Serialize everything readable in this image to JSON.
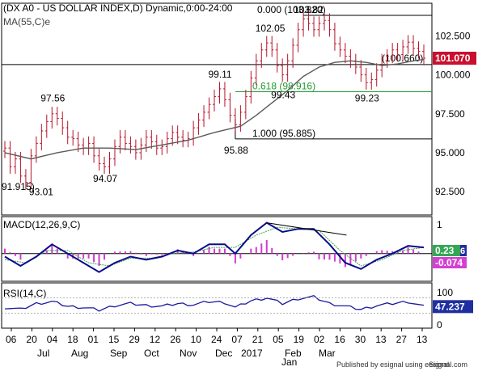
{
  "colors": {
    "candle": "#b8122a",
    "ma": "#5a5a5a",
    "fib_line": "#000000",
    "fib_618": "#1f9a2f",
    "macd": "#0a0a8c",
    "signal": "#3aa84a",
    "histogram": "#d23bd2",
    "rsi": "#1a1aa0",
    "price_badge": "#c8102e",
    "macd_badge": "#32a852",
    "macd_badge2": "#d43fd4",
    "rsi_badge": "#1f2fa0"
  },
  "chart_data": [
    {
      "type": "candlestick",
      "title": "(DX A0 - US DOLLAR INDEX,D) Dynamic,0:00-24:00",
      "overlay_label": "MA(55,C)e",
      "ylim": [
        91.0,
        104.6
      ],
      "y_ticks": [
        "102.500",
        "100.000",
        "97.500",
        "95.000",
        "92.500"
      ],
      "y_tick_values": [
        102.5,
        100.0,
        97.5,
        95.0,
        92.5
      ],
      "x_ticks": [
        "06",
        "20",
        "04",
        "18",
        "01",
        "15",
        "29",
        "12",
        "26",
        "10",
        "24",
        "07",
        "21",
        "05",
        "19",
        "02",
        "16",
        "30",
        "13",
        "27",
        "13"
      ],
      "x_month_labels": [
        "Jul",
        "Aug",
        "Sep",
        "Oct",
        "Nov",
        "Dec",
        "2017",
        "Jan",
        "Feb",
        "Mar"
      ],
      "close_path": [
        [
          0,
          95.3
        ],
        [
          1,
          94.1
        ],
        [
          2,
          94.6
        ],
        [
          3,
          93.5
        ],
        [
          4,
          93.1
        ],
        [
          5,
          94.8
        ],
        [
          6,
          95.6
        ],
        [
          7,
          96.4
        ],
        [
          8,
          97.0
        ],
        [
          9,
          97.5
        ],
        [
          10,
          97.2
        ],
        [
          11,
          96.6
        ],
        [
          12,
          96.0
        ],
        [
          13,
          95.9
        ],
        [
          14,
          95.5
        ],
        [
          15,
          95.3
        ],
        [
          16,
          95.6
        ],
        [
          17,
          94.8
        ],
        [
          18,
          94.3
        ],
        [
          19,
          94.1
        ],
        [
          20,
          94.6
        ],
        [
          21,
          95.4
        ],
        [
          22,
          96.0
        ],
        [
          23,
          95.6
        ],
        [
          24,
          95.4
        ],
        [
          25,
          95.0
        ],
        [
          26,
          95.5
        ],
        [
          27,
          96.0
        ],
        [
          28,
          95.7
        ],
        [
          29,
          95.3
        ],
        [
          30,
          95.4
        ],
        [
          31,
          95.9
        ],
        [
          32,
          96.3
        ],
        [
          33,
          96.0
        ],
        [
          34,
          95.8
        ],
        [
          35,
          95.9
        ],
        [
          36,
          96.6
        ],
        [
          37,
          97.1
        ],
        [
          38,
          97.6
        ],
        [
          39,
          98.1
        ],
        [
          40,
          98.6
        ],
        [
          41,
          99.1
        ],
        [
          42,
          98.4
        ],
        [
          43,
          97.4
        ],
        [
          44,
          96.8
        ],
        [
          45,
          97.6
        ],
        [
          46,
          98.6
        ],
        [
          47,
          99.8
        ],
        [
          48,
          100.9
        ],
        [
          49,
          101.6
        ],
        [
          50,
          102.05
        ],
        [
          51,
          101.6
        ],
        [
          52,
          100.6
        ],
        [
          53,
          100.0
        ],
        [
          54,
          100.9
        ],
        [
          55,
          101.9
        ],
        [
          56,
          102.9
        ],
        [
          57,
          103.6
        ],
        [
          58,
          103.3
        ],
        [
          59,
          102.9
        ],
        [
          60,
          103.3
        ],
        [
          61,
          103.5
        ],
        [
          62,
          102.9
        ],
        [
          63,
          102.0
        ],
        [
          64,
          101.6
        ],
        [
          65,
          101.2
        ],
        [
          66,
          100.9
        ],
        [
          67,
          100.5
        ],
        [
          68,
          100.0
        ],
        [
          69,
          99.5
        ],
        [
          70,
          99.7
        ],
        [
          71,
          100.3
        ],
        [
          72,
          100.9
        ],
        [
          73,
          101.2
        ],
        [
          74,
          101.6
        ],
        [
          75,
          101.3
        ],
        [
          76,
          101.8
        ],
        [
          77,
          102.1
        ],
        [
          78,
          101.7
        ],
        [
          79,
          101.5
        ],
        [
          80,
          101.07
        ]
      ],
      "ma_path": [
        [
          0,
          95.0
        ],
        [
          5,
          94.6
        ],
        [
          10,
          95.0
        ],
        [
          15,
          95.3
        ],
        [
          20,
          95.3
        ],
        [
          25,
          95.2
        ],
        [
          30,
          95.5
        ],
        [
          35,
          95.8
        ],
        [
          40,
          96.3
        ],
        [
          45,
          96.7
        ],
        [
          48,
          97.4
        ],
        [
          51,
          98.2
        ],
        [
          54,
          99.0
        ],
        [
          57,
          99.9
        ],
        [
          60,
          100.5
        ],
        [
          63,
          100.8
        ],
        [
          66,
          100.9
        ],
        [
          69,
          100.8
        ],
        [
          72,
          100.6
        ],
        [
          75,
          100.7
        ],
        [
          78,
          100.9
        ],
        [
          80,
          101.0
        ]
      ],
      "labels": [
        {
          "text": "97.56",
          "at": [
            9,
            97.56
          ]
        },
        {
          "text": "94.07",
          "at": [
            19,
            94.07
          ]
        },
        {
          "text": "99.11",
          "at": [
            41,
            99.11
          ]
        },
        {
          "text": "95.88",
          "at": [
            44,
            95.88
          ]
        },
        {
          "text": "102.05",
          "at": [
            50,
            102.05
          ]
        },
        {
          "text": "99.43",
          "at": [
            53,
            99.43
          ]
        },
        {
          "text": "103.82",
          "at": [
            57,
            103.82
          ]
        },
        {
          "text": "99.23",
          "at": [
            69,
            99.23
          ]
        },
        {
          "text": "93.01",
          "at": [
            4,
            93.01
          ]
        },
        {
          "text": "91.915)",
          "at": [
            0,
            91.915
          ]
        }
      ],
      "fib_levels": [
        {
          "text": "0.000 (103.820)",
          "value": 103.82
        },
        {
          "text": "0.618 (98.916)",
          "value": 98.916
        },
        {
          "text": "1.000 (95.885)",
          "value": 95.885
        }
      ],
      "horizontal_line": {
        "text": "(100.660)",
        "value": 100.66
      },
      "last_price": "101.070"
    },
    {
      "type": "line",
      "title": "MACD(12,26,9,C)",
      "y_ticks": [
        "1"
      ],
      "values_macd": [
        [
          0,
          -0.1
        ],
        [
          3,
          -0.4
        ],
        [
          6,
          -0.1
        ],
        [
          9,
          0.3
        ],
        [
          12,
          0.0
        ],
        [
          15,
          -0.3
        ],
        [
          18,
          -0.6
        ],
        [
          21,
          -0.3
        ],
        [
          24,
          -0.1
        ],
        [
          27,
          -0.2
        ],
        [
          30,
          -0.1
        ],
        [
          33,
          0.1
        ],
        [
          36,
          0.0
        ],
        [
          39,
          0.3
        ],
        [
          42,
          0.3
        ],
        [
          44,
          0.0
        ],
        [
          47,
          0.6
        ],
        [
          50,
          1.0
        ],
        [
          53,
          0.7
        ],
        [
          56,
          0.8
        ],
        [
          59,
          0.8
        ],
        [
          62,
          0.3
        ],
        [
          65,
          -0.3
        ],
        [
          68,
          -0.5
        ],
        [
          71,
          -0.2
        ],
        [
          74,
          0.0
        ],
        [
          77,
          0.25
        ],
        [
          80,
          0.2
        ]
      ],
      "values_signal": [
        [
          0,
          -0.2
        ],
        [
          4,
          -0.3
        ],
        [
          8,
          0.1
        ],
        [
          12,
          0.1
        ],
        [
          16,
          -0.3
        ],
        [
          20,
          -0.4
        ],
        [
          24,
          -0.15
        ],
        [
          28,
          -0.15
        ],
        [
          32,
          0.0
        ],
        [
          36,
          0.05
        ],
        [
          40,
          0.2
        ],
        [
          44,
          0.2
        ],
        [
          48,
          0.6
        ],
        [
          52,
          0.85
        ],
        [
          56,
          0.8
        ],
        [
          60,
          0.75
        ],
        [
          64,
          0.1
        ],
        [
          68,
          -0.4
        ],
        [
          72,
          -0.2
        ],
        [
          76,
          0.1
        ],
        [
          80,
          0.2
        ]
      ],
      "divergence_line": [
        [
          50,
          1.0
        ],
        [
          64,
          0.6
        ]
      ],
      "badge_values": [
        "0.23",
        "6",
        "-0.074"
      ]
    },
    {
      "type": "line",
      "title": "RSI(14,C)",
      "y_ticks": [
        "100",
        "0"
      ],
      "ylim": [
        0,
        100
      ],
      "values": [
        [
          0,
          45
        ],
        [
          3,
          40
        ],
        [
          6,
          55
        ],
        [
          9,
          60
        ],
        [
          12,
          48
        ],
        [
          15,
          45
        ],
        [
          18,
          38
        ],
        [
          21,
          50
        ],
        [
          24,
          55
        ],
        [
          27,
          50
        ],
        [
          30,
          48
        ],
        [
          33,
          55
        ],
        [
          36,
          52
        ],
        [
          39,
          60
        ],
        [
          42,
          58
        ],
        [
          44,
          45
        ],
        [
          47,
          62
        ],
        [
          50,
          70
        ],
        [
          53,
          55
        ],
        [
          56,
          68
        ],
        [
          59,
          72
        ],
        [
          62,
          55
        ],
        [
          65,
          48
        ],
        [
          68,
          40
        ],
        [
          71,
          50
        ],
        [
          74,
          55
        ],
        [
          77,
          60
        ],
        [
          80,
          47.237
        ]
      ],
      "last_value": "47.237"
    }
  ],
  "footer": "Published by esignal using eSignal",
  "footer_brand": "esignal.com"
}
